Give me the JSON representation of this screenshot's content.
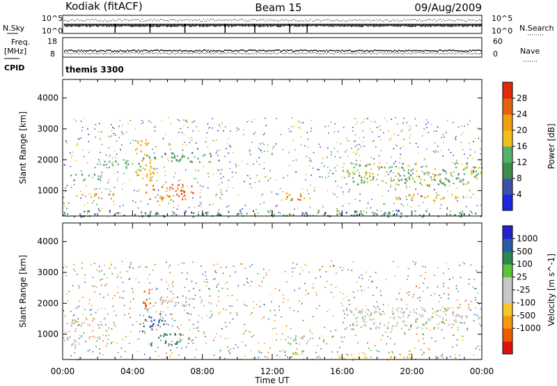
{
  "header": {
    "station": "Kodiak (fitACF)",
    "beam": "Beam 15",
    "date": "09/Aug/2009"
  },
  "status_panel": {
    "nsky_label": "N.Sky",
    "nsky_ticks": [
      "10^5",
      "10^0"
    ],
    "nsearch_label": "N.Search",
    "nsearch_ticks": [
      "10^5",
      "10^0"
    ],
    "freq_label": "Freq.",
    "freq_unit": "[MHz]",
    "freq_ticks": [
      "18",
      "8"
    ],
    "nave_label": "Nave",
    "nave_ticks": [
      "60",
      "0"
    ],
    "cpid_label": "CPID",
    "cpid_value": "themis 3300"
  },
  "colors": {
    "power": [
      "#1e24e6",
      "#3c52a8",
      "#3f8c4a",
      "#53b36a",
      "#f2c018",
      "#f0a00c",
      "#e6620c",
      "#e02a0a"
    ],
    "velocity": [
      "#e01010",
      "#f05a00",
      "#f59a10",
      "#f5c828",
      "#c8c8c8",
      "#c8c8c8",
      "#5cc43a",
      "#2a8850",
      "#2c5ca8",
      "#2424c8"
    ]
  },
  "chart_data": [
    {
      "type": "heatmap",
      "title": "Power",
      "xlabel": "",
      "ylabel": "Slant Range [km]",
      "xlim": [
        "00:00",
        "00:00"
      ],
      "ylim": [
        180,
        4600
      ],
      "x_ticks": [
        "00:00",
        "04:00",
        "08:00",
        "12:00",
        "16:00",
        "20:00",
        "00:00"
      ],
      "y_ticks": [
        1000,
        2000,
        3000,
        4000
      ],
      "colorbar": {
        "label": "Power [dB]",
        "ticks": [
          4,
          8,
          12,
          16,
          20,
          24,
          28
        ],
        "range": [
          0,
          32
        ]
      },
      "regions": [
        {
          "t": [
            0.0,
            3.0
          ],
          "range": [
            780,
            920
          ],
          "value": 22
        },
        {
          "t": [
            0.2,
            2.2
          ],
          "range": [
            1350,
            1550
          ],
          "value": 14
        },
        {
          "t": [
            2.0,
            4.5
          ],
          "range": [
            1750,
            2000
          ],
          "value": 12
        },
        {
          "t": [
            4.5,
            9.0
          ],
          "range": [
            1950,
            2250
          ],
          "value": 12
        },
        {
          "t": [
            4.7,
            7.5
          ],
          "range": [
            700,
            1250
          ],
          "value": 25
        },
        {
          "t": [
            4.2,
            5.2
          ],
          "range": [
            1300,
            2700
          ],
          "value": 20
        },
        {
          "t": [
            12.5,
            14.3
          ],
          "range": [
            700,
            950
          ],
          "value": 22
        },
        {
          "t": [
            16.0,
            24.0
          ],
          "range": [
            1200,
            1900
          ],
          "value": 14
        },
        {
          "t": [
            19.0,
            23.0
          ],
          "range": [
            700,
            900
          ],
          "value": 22
        },
        {
          "t": [
            0.0,
            24.0
          ],
          "range": [
            180,
            380
          ],
          "value": 10
        }
      ]
    },
    {
      "type": "heatmap",
      "title": "Velocity",
      "xlabel": "Time UT",
      "ylabel": "Slant Range [km]",
      "xlim": [
        "00:00",
        "00:00"
      ],
      "ylim": [
        180,
        4600
      ],
      "x_ticks": [
        "00:00",
        "04:00",
        "08:00",
        "12:00",
        "16:00",
        "20:00",
        "00:00"
      ],
      "y_ticks": [
        1000,
        2000,
        3000,
        4000
      ],
      "colorbar": {
        "label": "Velocity [m s^-1]",
        "ticks": [
          1000,
          500,
          100,
          25,
          -25,
          -100,
          -500,
          -1000
        ],
        "range": [
          -1250,
          1250
        ]
      },
      "regions": [
        {
          "t": [
            0.0,
            3.0
          ],
          "range": [
            700,
            950
          ],
          "value": 0
        },
        {
          "t": [
            0.0,
            3.0
          ],
          "range": [
            1300,
            1550
          ],
          "value": 0
        },
        {
          "t": [
            5.0,
            7.2
          ],
          "range": [
            650,
            1100
          ],
          "value": 300
        },
        {
          "t": [
            4.5,
            5.8
          ],
          "range": [
            1100,
            1700
          ],
          "value": 800
        },
        {
          "t": [
            4.3,
            5.0
          ],
          "range": [
            1900,
            2500
          ],
          "value": -800
        },
        {
          "t": [
            5.5,
            9.0
          ],
          "range": [
            1950,
            2250
          ],
          "value": 0
        },
        {
          "t": [
            12.5,
            14.3
          ],
          "range": [
            700,
            950
          ],
          "value": 0
        },
        {
          "t": [
            13.0,
            14.5
          ],
          "range": [
            380,
            480
          ],
          "value": 80
        },
        {
          "t": [
            15.5,
            20.0
          ],
          "range": [
            200,
            380
          ],
          "value": -60
        },
        {
          "t": [
            16.0,
            24.0
          ],
          "range": [
            1200,
            1900
          ],
          "value": 0
        }
      ]
    }
  ]
}
